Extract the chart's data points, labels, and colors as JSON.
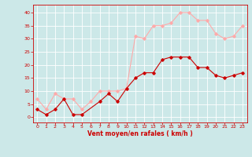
{
  "x": [
    0,
    1,
    2,
    3,
    4,
    5,
    6,
    7,
    8,
    9,
    10,
    11,
    12,
    13,
    14,
    15,
    16,
    17,
    18,
    19,
    20,
    21,
    22,
    23
  ],
  "vent_moyen": [
    3,
    1,
    3,
    7,
    1,
    1,
    null,
    6,
    9,
    6,
    11,
    15,
    17,
    17,
    22,
    23,
    23,
    23,
    19,
    19,
    16,
    15,
    16,
    17
  ],
  "rafales": [
    7,
    3,
    9,
    7,
    7,
    3,
    6,
    10,
    10,
    10,
    11,
    31,
    30,
    35,
    35,
    36,
    40,
    40,
    37,
    37,
    32,
    30,
    31,
    35
  ],
  "color_moyen": "#cc0000",
  "color_rafales": "#ffaaaa",
  "background_color": "#cce8e8",
  "grid_color": "#ffffff",
  "xlabel": "Vent moyen/en rafales ( km/h )",
  "ylim": [
    -2,
    43
  ],
  "xlim": [
    -0.5,
    23.5
  ],
  "yticks": [
    0,
    5,
    10,
    15,
    20,
    25,
    30,
    35,
    40
  ],
  "xticks": [
    0,
    1,
    2,
    3,
    4,
    5,
    6,
    7,
    8,
    9,
    10,
    11,
    12,
    13,
    14,
    15,
    16,
    17,
    18,
    19,
    20,
    21,
    22,
    23
  ]
}
